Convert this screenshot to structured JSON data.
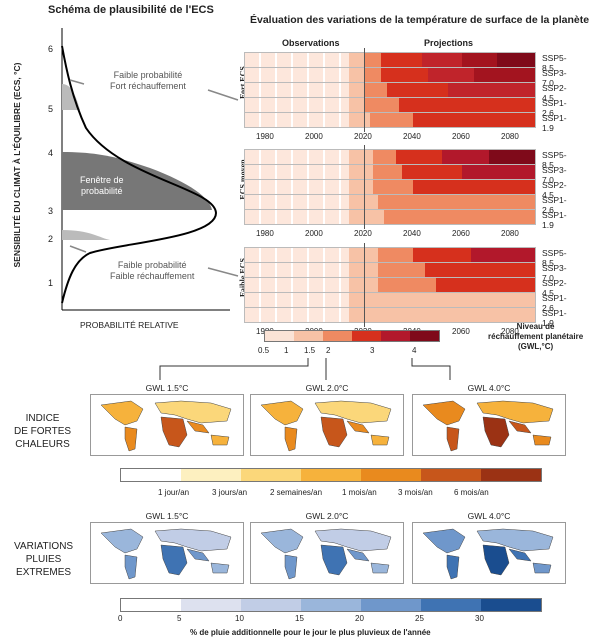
{
  "left": {
    "title": "Schéma de plausibilité de l'ECS",
    "yaxis": "SENSIBILITÉ DU CLIMAT À L'ÉQUILIBRE (ECS, °C)",
    "xaxis": "PROBABILITÉ RELATIVE",
    "yticks": [
      "6",
      "5",
      "4",
      "3",
      "2",
      "1"
    ],
    "high_label_1": "Faible probabilité",
    "high_label_2": "Fort réchauffement",
    "window_label_1": "Fenêtre de",
    "window_label_2": "probabilité",
    "low_label_1": "Faible probabilité",
    "low_label_2": "Faible réchauffement"
  },
  "right": {
    "title": "Évaluation des variations de la température de surface de la planète",
    "observations": "Observations",
    "projections": "Projections",
    "panels": [
      {
        "label": "Fort ECS"
      },
      {
        "label": "ECS moyen"
      },
      {
        "label": "Faible ECS"
      }
    ],
    "scenarios": [
      "SSP5-8.5",
      "SSP3-7.0",
      "SSP2-4.5",
      "SSP1-2.6",
      "SSP1-1.9"
    ],
    "years": [
      "1980",
      "2000",
      "2020",
      "2040",
      "2060",
      "2080"
    ],
    "legend_ticks": [
      "0.5",
      "1",
      "1.5",
      "2",
      "3",
      "4"
    ],
    "legend_title_1": "Niveau de",
    "legend_title_2": "réchauffement planétaire",
    "legend_title_3": "(GWL,°C)"
  },
  "heat": {
    "row_label_1": "INDICE",
    "row_label_2": "DE FORTES",
    "row_label_3": "CHALEURS",
    "maps": [
      "GWL 1.5°C",
      "GWL 2.0°C",
      "GWL 4.0°C"
    ],
    "legend": [
      "1 jour/an",
      "3 jours/an",
      "2 semaines/an",
      "1 mois/an",
      "3 mois/an",
      "6 mois/an"
    ]
  },
  "rain": {
    "row_label_1": "VARIATIONS",
    "row_label_2": "PLUIES",
    "row_label_3": "EXTREMES",
    "maps": [
      "GWL 1.5°C",
      "GWL 2.0°C",
      "GWL 4.0°C"
    ],
    "legend": [
      "0",
      "5",
      "10",
      "15",
      "20",
      "25",
      "30"
    ],
    "caption": "% de pluie additionnelle pour le jour le plus pluvieux de l'année"
  },
  "colors": {
    "warm": [
      "#fbe3d6",
      "#f7c2a6",
      "#ef8a62",
      "#d6301d",
      "#b2182b",
      "#7f0a1a"
    ],
    "heat": [
      "#fff",
      "#fdf0c0",
      "#fbd77a",
      "#f6b23c",
      "#e98a1e",
      "#c7561b",
      "#9b3214"
    ],
    "rain": [
      "#fff",
      "#dde1ef",
      "#c1cde6",
      "#9ab6db",
      "#6f97cb",
      "#3f73b3",
      "#1a4d8f"
    ]
  }
}
